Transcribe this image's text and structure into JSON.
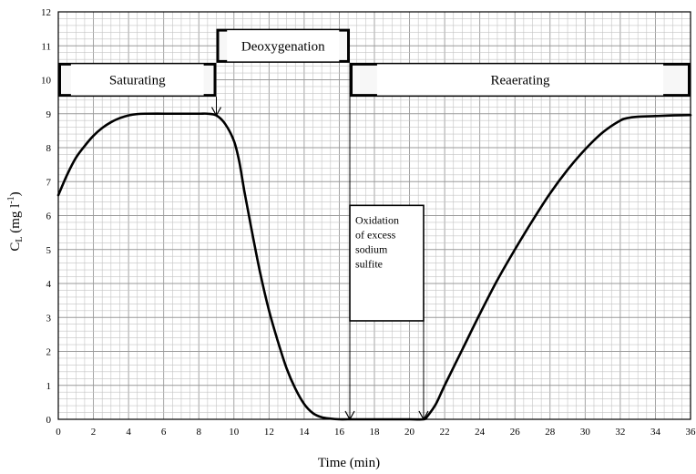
{
  "chart_data": {
    "type": "line",
    "title": "",
    "xlabel": "Time (min)",
    "ylabel_main": "C",
    "ylabel_sub": "L",
    "ylabel_rest": " (mg l",
    "ylabel_sup": "-1",
    "ylabel_close": ")",
    "xlim": [
      0,
      36
    ],
    "ylim": [
      0,
      12
    ],
    "x_ticks": [
      "0",
      "2",
      "4",
      "6",
      "8",
      "10",
      "12",
      "14",
      "16",
      "18",
      "20",
      "22",
      "24",
      "26",
      "28",
      "30",
      "32",
      "34",
      "36"
    ],
    "y_ticks": [
      "0",
      "1",
      "2",
      "3",
      "4",
      "5",
      "6",
      "7",
      "8",
      "9",
      "10",
      "11",
      "12"
    ],
    "grid": true,
    "series": [
      {
        "x": [
          0,
          0.5,
          1,
          1.5,
          2,
          2.5,
          3,
          3.5,
          4,
          4.5,
          5,
          6,
          7,
          8,
          8.5,
          9,
          9.5,
          10,
          10.3,
          10.6,
          11,
          11.5,
          12,
          12.5,
          13,
          13.5,
          14,
          14.5,
          15,
          15.5,
          16,
          16.5,
          18,
          20,
          20.8,
          21,
          21.5,
          22,
          23,
          24,
          25,
          26,
          27,
          28,
          29,
          30,
          31,
          32,
          32.5,
          33,
          34,
          35,
          36
        ],
        "y": [
          6.6,
          7.2,
          7.7,
          8.05,
          8.35,
          8.58,
          8.75,
          8.87,
          8.95,
          8.99,
          9.0,
          9.0,
          9.0,
          9.0,
          9.0,
          8.95,
          8.7,
          8.2,
          7.6,
          6.7,
          5.6,
          4.3,
          3.2,
          2.3,
          1.5,
          0.9,
          0.45,
          0.18,
          0.06,
          0.02,
          0.0,
          0.0,
          0.0,
          0.0,
          0.0,
          0.08,
          0.45,
          1.0,
          2.05,
          3.1,
          4.1,
          5.0,
          5.85,
          6.65,
          7.35,
          7.95,
          8.45,
          8.8,
          8.88,
          8.91,
          8.93,
          8.95,
          8.96
        ]
      }
    ],
    "phases": [
      {
        "label": "Saturating",
        "x_start": 0,
        "x_end": 9,
        "y_top": 10.5,
        "y_bottom": 9.5
      },
      {
        "label": "Deoxygenation",
        "x_start": 9,
        "x_end": 16.6,
        "y_top": 11.5,
        "y_bottom": 10.5
      },
      {
        "label": "Reaerating",
        "x_start": 16.6,
        "x_end": 36,
        "y_top": 10.5,
        "y_bottom": 9.5
      }
    ],
    "note_lines": [
      "Oxidation",
      "of excess",
      "sodium",
      "sulfite"
    ],
    "note_box": {
      "x_start": 16.6,
      "x_end": 20.8,
      "y_top": 6.3,
      "y_bottom": 2.9
    },
    "arrows": [
      {
        "x": 9,
        "y_from": 9.5,
        "y_to": 8.95
      },
      {
        "x": 16.6,
        "y_from": 10.5,
        "y_to": 0
      },
      {
        "x": 20.8,
        "y_from": 2.9,
        "y_to": 0
      }
    ]
  }
}
